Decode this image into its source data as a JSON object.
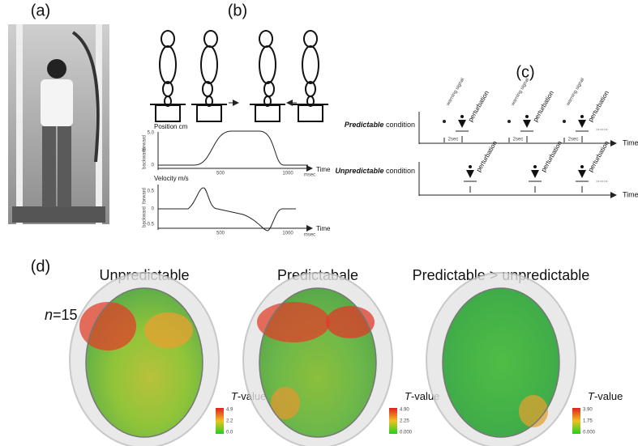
{
  "panels": {
    "a": {
      "label": "(a)"
    },
    "b": {
      "label": "(b)",
      "position": {
        "title": "Position cm",
        "forward": "forward",
        "backward": "backward",
        "yticks": [
          "5.0",
          "0"
        ],
        "xticks": [
          "500",
          "1000"
        ],
        "unit": "msec",
        "axis": "Time"
      },
      "velocity": {
        "title": "Velocity m/s",
        "forward": "forward",
        "backward": "backward",
        "yticks": [
          "0.5",
          "0",
          "-0.5"
        ],
        "xticks": [
          "500",
          "1000"
        ],
        "unit": "msec",
        "axis": "Time"
      }
    },
    "c": {
      "label": "(c)",
      "condition_word": "condition",
      "predictable": {
        "name": "Predictable"
      },
      "unpredictable": {
        "name": "Unpredictable"
      },
      "warning": "warning signal",
      "perturbation": "perturbation",
      "interval": "2sec",
      "axis": "Time",
      "ellipsis": "......"
    },
    "d": {
      "label": "(d)",
      "n_symbol": "n",
      "n_value": "=15",
      "maps": [
        {
          "title": "Unpredictable",
          "t_symbol": "T",
          "t_suffix": "-value",
          "colorbar": [
            "4.9",
            "2.2",
            "0.0"
          ]
        },
        {
          "title": "Predictabale",
          "t_symbol": "T",
          "t_suffix": "-value",
          "colorbar": [
            "4.90",
            "2.25",
            "0.000"
          ]
        },
        {
          "title": "Predictable > unpredictable",
          "t_symbol": "T",
          "t_suffix": "-value",
          "colorbar": [
            "3.90",
            "1.75",
            "0.000"
          ]
        }
      ]
    }
  }
}
